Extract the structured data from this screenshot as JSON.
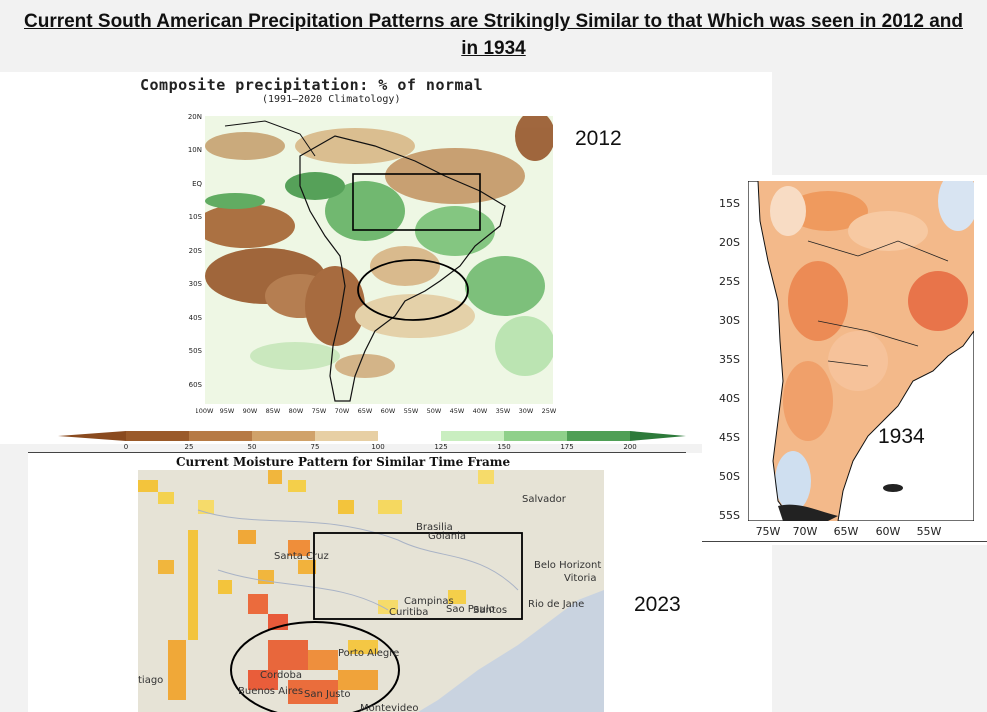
{
  "slide_title_line1": "Current South American Precipitation Patterns are Strikingly Similar to that Which was seen in 2012 and",
  "slide_title_line2": "in 1934",
  "map2012": {
    "title": "Composite precipitation: % of normal",
    "subtitle": "(1991–2020 Climatology)",
    "year_label": "2012",
    "lat_labels": [
      "20N",
      "10N",
      "EQ",
      "10S",
      "20S",
      "30S",
      "40S",
      "50S",
      "60S"
    ],
    "lon_labels": [
      "100W",
      "95W",
      "90W",
      "85W",
      "80W",
      "75W",
      "70W",
      "65W",
      "60W",
      "55W",
      "50W",
      "45W",
      "40W",
      "35W",
      "30W",
      "25W"
    ],
    "colorbar_ticks": [
      "0",
      "25",
      "50",
      "75",
      "100",
      "125",
      "150",
      "175",
      "200"
    ],
    "colorbar_colors": [
      "#9a5a2a",
      "#b67a45",
      "#d0a26a",
      "#e7cfa4",
      "#ffffff",
      "#c9eec0",
      "#8fd08a",
      "#5aab5c",
      "#2d7a3a"
    ]
  },
  "map2023": {
    "title": "Current Moisture Pattern for Similar Time Frame",
    "year_label": "2023",
    "cities": [
      "Salvador",
      "Brasilia",
      "Goiania",
      "Santa Cruz",
      "Belo Horizont",
      "Vitoria",
      "Campinas",
      "Sao Paulo",
      "Rio de Jane",
      "Curitiba",
      "Santos",
      "Porto Alegre",
      "Cordoba",
      "Buenos Aires",
      "San Justo",
      "Montevideo",
      "tiago"
    ]
  },
  "map1934": {
    "year_label": "1934",
    "lat_labels": [
      "15S",
      "20S",
      "25S",
      "30S",
      "35S",
      "40S",
      "45S",
      "50S",
      "55S"
    ],
    "lon_labels": [
      "75W",
      "70W",
      "65W",
      "60W",
      "55W"
    ]
  }
}
